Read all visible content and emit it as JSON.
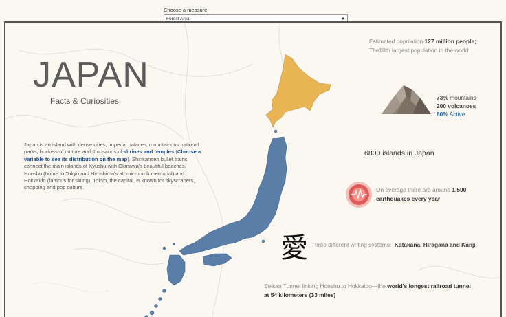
{
  "measure": {
    "label": "Choose a measure",
    "selected": "Forest Area"
  },
  "header": {
    "title": "JAPAN",
    "subtitle": "Facts & Curiosities"
  },
  "intro": {
    "text_1": "Japan is an island with dense cities, imperial palaces, mountainous national parks, buckets of culture and thousands of ",
    "highlight_1": "shrines and temples",
    "text_2": " (",
    "highlight_2": "Choose a variable to see its distribution on the map",
    "text_3": "). Shinkansen bullet trains connect the main islands of Kyushu with Okinawa's beautiful beaches, Honshu (home to Tokyo and Hiroshima's atomic-bomb memorial) and Hokkaido (famous for skiing). Tokyo, the capital, is known for skyscrapers, shopping and pop culture."
  },
  "population": {
    "text_1": "Estimated population ",
    "value": "127 million people;",
    "text_2": "The10th largest population in the world"
  },
  "mountains": {
    "mountains_value": "73%",
    "mountains_label": "mountains",
    "volcanoes_value": "200",
    "volcanoes_label": "volcanoes",
    "active_value": "80%",
    "active_label": "Active"
  },
  "islands": {
    "text": "6800 islands in Japan"
  },
  "earthquakes": {
    "text_1": "On average there are around ",
    "value": "1,500",
    "text_2": "earthquakes every year"
  },
  "writing": {
    "kanji": "愛",
    "text": "Three different writing systems:",
    "systems": "Katakana, Hiragana and Kanji"
  },
  "tunnel": {
    "text_1": "Seikan Tunnel linking Honshu to Hokkaido—the ",
    "highlight": "world's longest railroad tunnel",
    "text_2": "at 54 kilometers (33 miles)"
  },
  "colors": {
    "hokkaido": "#e8b454",
    "honshu": "#5a7ea8",
    "accent_blue": "#1f4e86",
    "quake_red": "#e05a5a"
  }
}
